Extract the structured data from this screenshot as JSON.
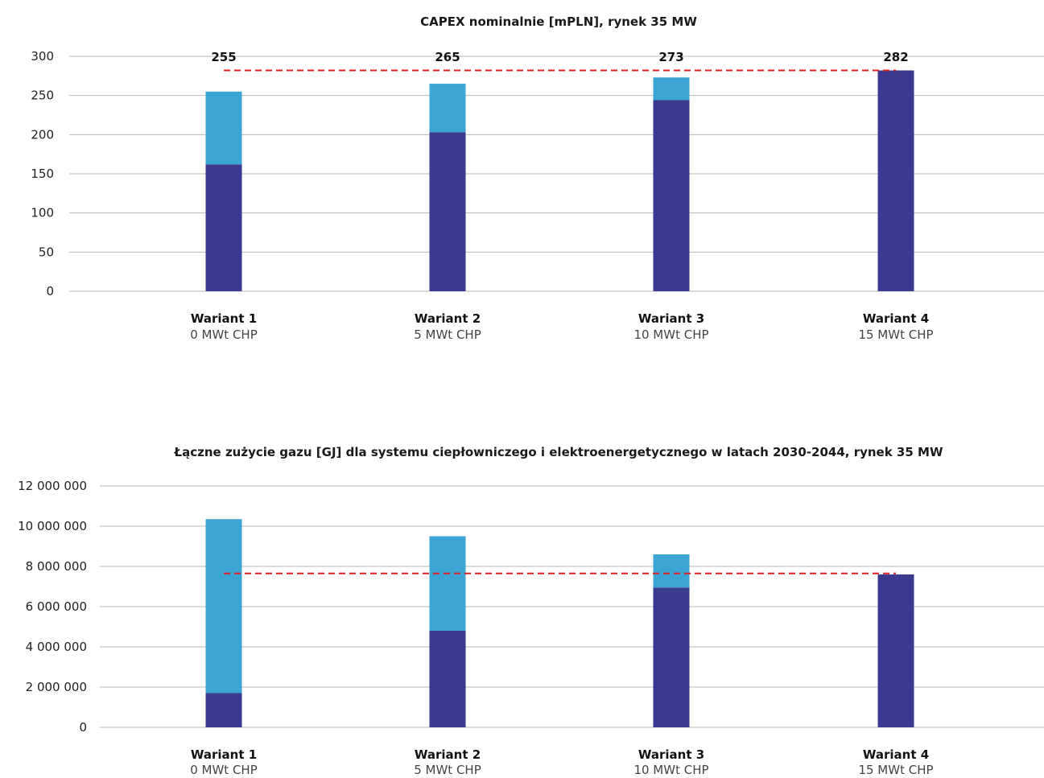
{
  "colors": {
    "dark": "#3b3a8e",
    "light": "#3ba6d4",
    "ref_line": "#e02020",
    "grid": "#b8b8b8"
  },
  "chart_data": [
    {
      "type": "bar",
      "stacked": true,
      "title": "CAPEX nominalnie [mPLN], rynek 35 MW",
      "categories": [
        "Wariant 1",
        "Wariant 2",
        "Wariant 3",
        "Wariant 4"
      ],
      "category_sublabels": [
        "0 MWt CHP",
        "5 MWt CHP",
        "10 MWt CHP",
        "15 MWt CHP"
      ],
      "series": [
        {
          "values": [
            162,
            203,
            244,
            282
          ]
        },
        {
          "values": [
            93,
            62,
            29,
            0
          ]
        }
      ],
      "totals": [
        "255",
        "265",
        "273",
        "282"
      ],
      "reference_line": 282,
      "ylim": [
        0,
        300
      ],
      "yticks": [
        0,
        50,
        100,
        150,
        200,
        250,
        300
      ],
      "ytick_labels": [
        "0",
        "50",
        "100",
        "150",
        "200",
        "250",
        "300"
      ],
      "grid": true
    },
    {
      "type": "bar",
      "stacked": true,
      "title": "Łączne zużycie gazu [GJ] dla systemu ciepłowniczego i elektroenergetycznego w latach 2030-2044, rynek 35 MW",
      "categories": [
        "Wariant 1",
        "Wariant 2",
        "Wariant 3",
        "Wariant 4"
      ],
      "category_sublabels": [
        "0 MWt CHP",
        "5 MWt CHP",
        "10 MWt CHP",
        "15 MWt CHP"
      ],
      "series": [
        {
          "values": [
            1700000,
            4800000,
            6950000,
            7600000
          ]
        },
        {
          "values": [
            8650000,
            4700000,
            1650000,
            0
          ]
        }
      ],
      "reference_line": 7650000,
      "ylim": [
        0,
        12000000
      ],
      "yticks": [
        0,
        2000000,
        4000000,
        6000000,
        8000000,
        10000000,
        12000000
      ],
      "ytick_labels": [
        "0",
        "2 000 000",
        "4 000 000",
        "6 000 000",
        "8 000 000",
        "10 000 000",
        "12 000 000"
      ],
      "grid": true
    }
  ]
}
